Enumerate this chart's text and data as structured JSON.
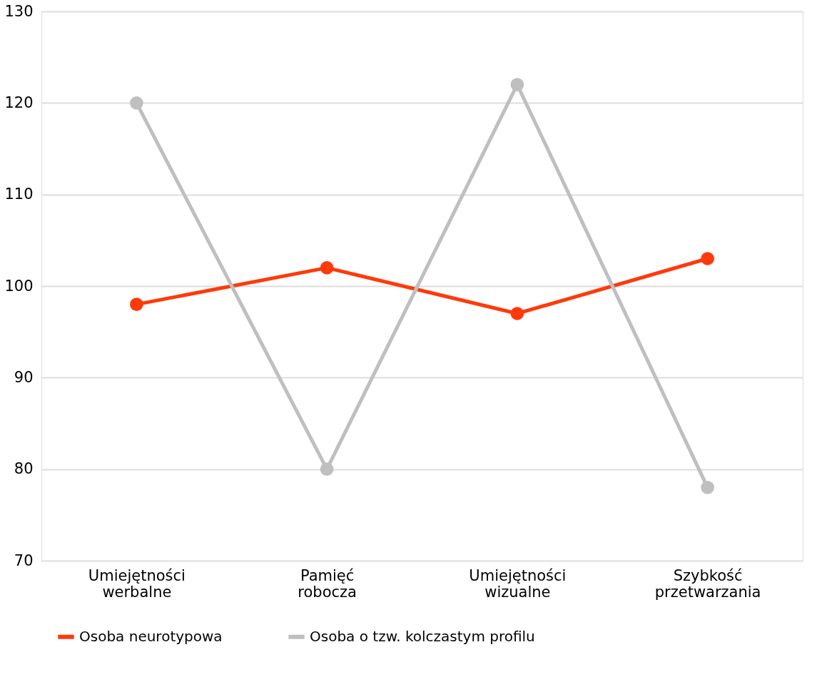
{
  "chart_data": {
    "type": "line",
    "categories": [
      "Umiejętności werbalne",
      "Pamięć robocza",
      "Umiejętności wizualne",
      "Szybkość przetwarzania"
    ],
    "series": [
      {
        "name": "Osoba neurotypowa",
        "color": "#fe3a0a",
        "values": [
          98,
          102,
          97,
          103
        ]
      },
      {
        "name": "Osoba o tzw. kolczastym profilu",
        "color": "#bfbfbf",
        "values": [
          120,
          80,
          122,
          78
        ]
      }
    ],
    "ylim": [
      70,
      130
    ],
    "yticks": [
      70,
      80,
      90,
      100,
      110,
      120,
      130
    ],
    "grid": "y",
    "legend": "bottom",
    "marker": "circle",
    "line_style": "solid"
  }
}
